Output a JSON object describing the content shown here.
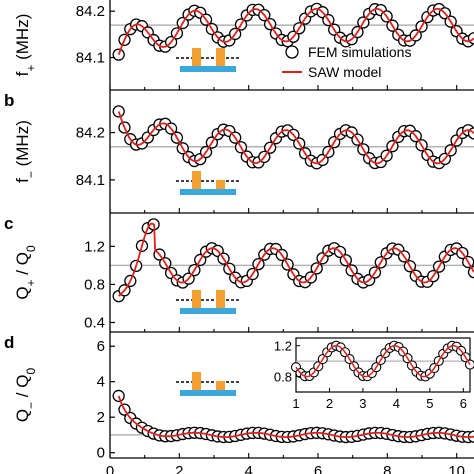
{
  "colors": {
    "marker_stroke": "#000000",
    "model_line": "#e0201b",
    "reference_line": "#b3b3b3",
    "electrode": "#f4a030",
    "substrate": "#3aa8dc"
  },
  "legend": {
    "fem_label": "FEM simulations",
    "saw_label": "SAW model"
  },
  "chart_data": [
    {
      "type": "line",
      "panel": "a",
      "panel_label": "",
      "ylabel_main": "f",
      "ylabel_sub": "+",
      "ylabel_unit": " (MHz)",
      "yticks": [
        "84.1",
        "84.2"
      ],
      "ylim": [
        84.03,
        84.25
      ],
      "xlim": [
        0,
        10.5
      ],
      "reference_y": 84.17,
      "series": [
        {
          "base": 84.17,
          "amp": 0.035,
          "start": 84.085,
          "decay": 0.8,
          "phase": 0.0,
          "period": 1.75
        }
      ]
    },
    {
      "type": "line",
      "panel": "b",
      "panel_label": "b",
      "ylabel_main": "f",
      "ylabel_sub": "−",
      "ylabel_unit": " (MHz)",
      "yticks": [
        "84.1",
        "84.2"
      ],
      "ylim": [
        84.03,
        84.29
      ],
      "xlim": [
        0,
        10.5
      ],
      "reference_y": 84.17,
      "series": [
        {
          "base": 84.17,
          "amp": 0.035,
          "start": 84.27,
          "decay": 0.8,
          "phase": 3.14,
          "period": 1.75
        }
      ]
    },
    {
      "type": "line",
      "panel": "c",
      "panel_label": "c",
      "ylabel_main": "Q",
      "ylabel_sub": "+",
      "ylabel_mid": " / Q",
      "ylabel_sub2": "0",
      "yticks": [
        "0.4",
        "0.8",
        "1.2"
      ],
      "ylim": [
        0.3,
        1.55
      ],
      "xlim": [
        0,
        10.5
      ],
      "reference_y": 1.0,
      "series": [
        {
          "base": 1.0,
          "amp": 0.18,
          "start": 0.52,
          "decay": 1.1,
          "phase": -0.6,
          "period": 1.75,
          "peak": 1.4
        }
      ]
    },
    {
      "type": "line",
      "panel": "d",
      "panel_label": "d",
      "ylabel_main": "Q",
      "ylabel_sub": "−",
      "ylabel_mid": " / Q",
      "ylabel_sub2": "0",
      "yticks": [
        "0",
        "2",
        "4",
        "6"
      ],
      "xticks": [
        "0",
        "2",
        "4",
        "6",
        "8",
        "10"
      ],
      "ylim": [
        -0.3,
        6.8
      ],
      "xlim": [
        0,
        10.5
      ],
      "reference_y": 1.0,
      "series": [
        {
          "base": 1.0,
          "amp": 0.12,
          "start": 5.5,
          "decay": 0.35,
          "phase": 0.0,
          "period": 1.75
        }
      ],
      "inset": {
        "yticks": [
          "0.8",
          "1.2"
        ],
        "xticks": [
          "1",
          "2",
          "3",
          "4",
          "5",
          "6"
        ],
        "ylim": [
          0.6,
          1.3
        ],
        "xlim": [
          1,
          6.2
        ],
        "reference_y": 1.0,
        "amp": 0.2
      }
    }
  ]
}
